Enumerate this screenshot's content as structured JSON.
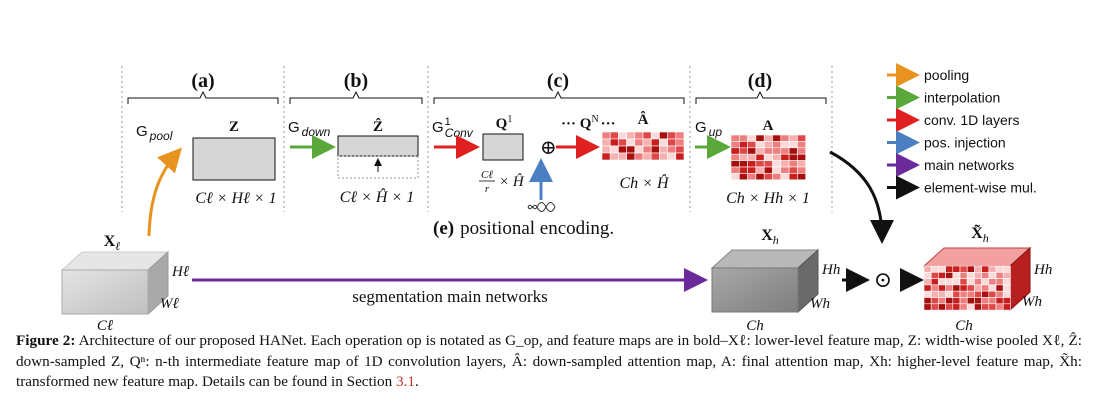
{
  "panels": {
    "a": {
      "tag": "(a)",
      "op": "G",
      "op_sub": "pool",
      "label": "Z",
      "dims": "Cℓ × Hℓ × 1"
    },
    "b": {
      "tag": "(b)",
      "op": "G",
      "op_sub": "down",
      "label": "Ẑ",
      "dims": "Cℓ × Ĥ × 1"
    },
    "c": {
      "tag": "(c)",
      "op": "G",
      "op_sup": "1",
      "op_sub": "Conv",
      "q1": "Q",
      "q1_sup": "1",
      "dots": "··· Q",
      "qn_sup": "N",
      "dots2": "···",
      "ahat": "Â",
      "ratio_num": "Cℓ",
      "ratio_den": "r",
      "ratio_rest": "× Ĥ",
      "ahat_dims": "Ch × Ĥ",
      "plus": "⊕"
    },
    "d": {
      "tag": "(d)",
      "op": "G",
      "op_sub": "up",
      "label": "A",
      "dims": "Ch × Hh × 1"
    },
    "e": {
      "tag": "(e)",
      "text": "positional encoding."
    }
  },
  "legend": [
    {
      "label": "pooling",
      "color": "#e8931f"
    },
    {
      "label": "interpolation",
      "color": "#5aa83a"
    },
    {
      "label": "conv. 1D layers",
      "color": "#e02020"
    },
    {
      "label": "pos. injection",
      "color": "#4a7fc1"
    },
    {
      "label": "main networks",
      "color": "#6a2a9a"
    },
    {
      "label": "element-wise mul.",
      "color": "#111111"
    }
  ],
  "volumes": {
    "xl": {
      "name": "X",
      "sub": "ℓ",
      "h": "Hℓ",
      "w": "Wℓ",
      "c": "Cℓ"
    },
    "xh": {
      "name": "X",
      "sub": "h",
      "h": "Hh",
      "w": "Wh",
      "c": "Ch"
    },
    "xt": {
      "name": "X̃",
      "sub": "h",
      "h": "Hh",
      "w": "Wh",
      "c": "Ch"
    }
  },
  "main_arrow_label": "segmentation main networks",
  "mul_symbol": "⊙",
  "caption": {
    "figure": "Figure 2:",
    "text": " Architecture of our proposed HANet. Each operation op is notated as G_op, and feature maps are in bold–Xℓ: lower-level feature map, Z: width-wise pooled Xℓ, Ẑ: down-sampled Z, Qⁿ: n-th intermediate feature map of 1D convolution layers, Â: down-sampled attention map, A: final attention map, Xh: higher-level feature map, X̃h: transformed new feature map. Details can be found in Section ",
    "ref": "3.1",
    "end": "."
  }
}
